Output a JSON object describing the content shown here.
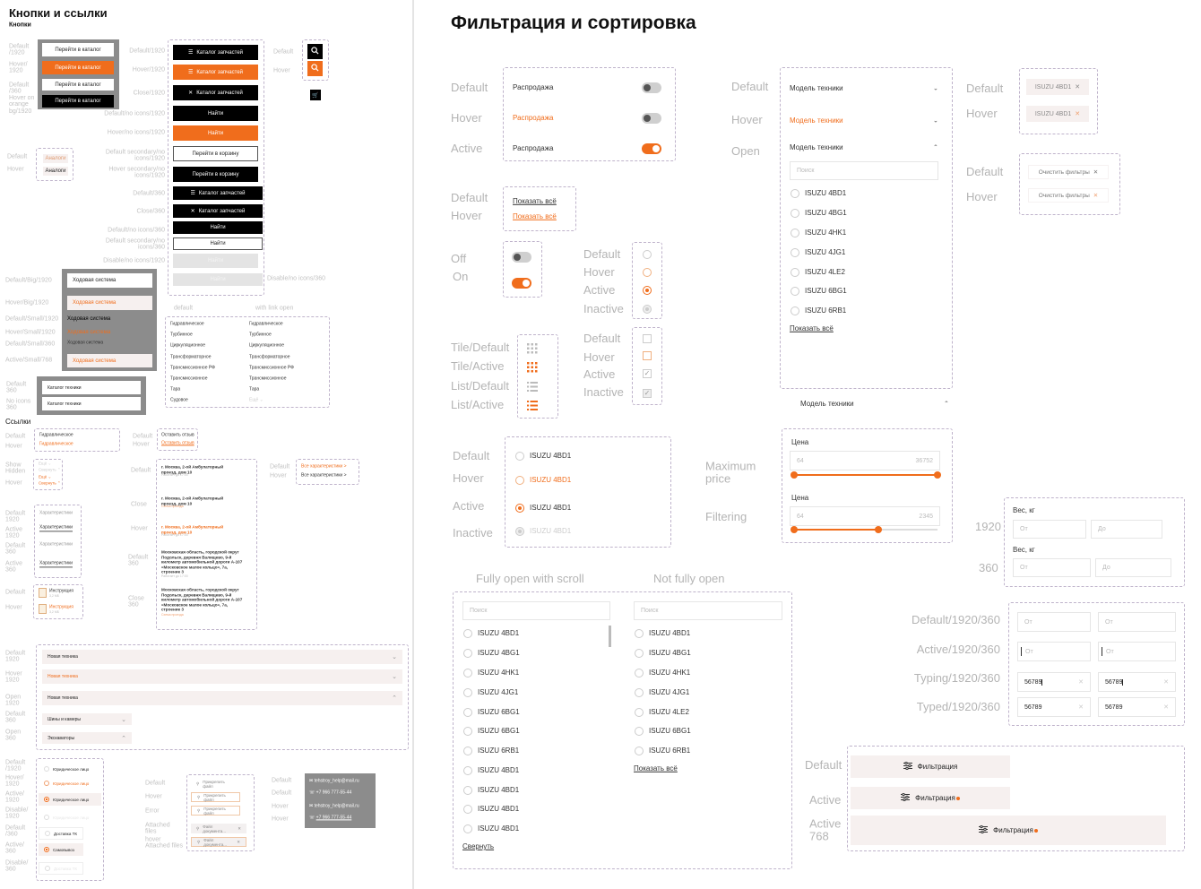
{
  "left": {
    "title": "Кнопки и ссылки",
    "buttons_heading": "Кнопки",
    "links_heading": "Ссылки",
    "group1": {
      "labels": [
        "Default\n/1920",
        "Hover/\n1920",
        "Default\n/360",
        "Hover on\norange\nbg/1920"
      ],
      "buttons": [
        "Перейти в каталог",
        "Перейти в каталог",
        "Перейти в каталог",
        "Перейти в каталог"
      ]
    },
    "main_buttons": {
      "labels": [
        "Default/1920",
        "Hover/1920",
        "Close/1920",
        "Default/no icons/1920",
        "Hover/no icons/1920",
        "Default secondary/no\nicons/1920",
        "Hover secondary/no\nicons/1920",
        "Default/360",
        "Close/360",
        "Default/no icons/360",
        "Default secondary/no\nicons/360",
        "Disable/no icons/1920",
        "Disable/no icons/360"
      ],
      "buttons": [
        "Каталог запчастей",
        "Каталог запчастей",
        "Каталог запчастей",
        "Найти",
        "Найти",
        "Перейти в корзину",
        "Перейти в корзину",
        "Каталог запчастей",
        "Каталог запчастей",
        "Найти",
        "Найти",
        "Найти",
        "Найти"
      ]
    },
    "icon_buttons": {
      "labels": [
        "Default",
        "Hover"
      ]
    },
    "analog": {
      "labels": [
        "Default",
        "Hover"
      ],
      "buttons": [
        "Аналоги",
        "Аналоги"
      ]
    },
    "bars": {
      "labels": [
        "Default/Big/1920",
        "Hover/Big/1920",
        "Default/Small/1920",
        "Hover/Small/1920",
        "Default/Small/360",
        "Active/Small/768"
      ],
      "items": [
        "Ходовая система",
        "Ходовая система",
        "Ходовая система",
        "Ходовая система",
        "Ходовая система",
        "Ходовая система"
      ]
    },
    "catalog_fields": {
      "labels": [
        "Default\n360",
        "No icons\n360"
      ],
      "items": [
        "Каталог техники",
        "Каталог техники"
      ]
    },
    "category_list": {
      "headers": [
        "default",
        "with link open"
      ],
      "col1": [
        "Гидравлическое",
        "Турбинное",
        "Циркуляционное",
        "Трансформаторное",
        "Трансмиссионное РФ",
        "Трансмиссионное",
        "Тара",
        "Судовое"
      ],
      "col2": [
        "Гидравлическое",
        "Турбинное",
        "Циркуляционное",
        "Трансформаторное",
        "Трансмиссионное РФ",
        "Трансмиссионное",
        "Тара"
      ],
      "more": "Ещё ⌄"
    },
    "link_states": {
      "labels": [
        "Default",
        "Hover"
      ],
      "items": [
        "Гидравлическое",
        "Гидравлическое"
      ]
    },
    "review": {
      "labels": [
        "Default",
        "Hover"
      ],
      "items": [
        "Оставить отзыв",
        "Оставить отзыв"
      ]
    },
    "show_hidden": {
      "labels": [
        "Show\nHidden",
        "Hover"
      ],
      "items": [
        "Ещё ⌄",
        "Свернуть ⌃",
        "Ещё ⌄",
        "Свернуть ⌃"
      ]
    },
    "tabs": {
      "labels": [
        "Default\n1920",
        "Active\n1920",
        "Default\n360",
        "Active\n360"
      ],
      "items": [
        "Характеристики",
        "Характеристики",
        "Характеристики",
        "Характеристики"
      ]
    },
    "file": {
      "labels": [
        "Default",
        "Hover"
      ],
      "name": "Инструкция",
      "size": "3,2 МБ"
    },
    "addresses": {
      "labels": [
        "Default",
        "Close",
        "Hover",
        "Default\n360",
        "Close\n360"
      ],
      "items": [
        {
          "text": "г. Москва, 2-ой Амбулаторный\nпроезд, дом 10",
          "note": "Работает до 17:00"
        },
        {
          "text": "г. Москва, 2-ой Амбулаторный\nпроезд, дом 10",
          "note": "Схема проезда"
        },
        {
          "text": "г. Москва, 2-ой Амбулаторный\nпроезд, дом 10",
          "note": "Работает до 17:00"
        },
        {
          "text": "Московская область, городской округ\nПодольск, деревня Валищево, 9-й\nкилометр автомобильной дороги А-107\n«Московское малое кольцо», 7а,\nстроение 3",
          "note": "Работает до 17:00"
        },
        {
          "text": "Московская область, городской округ\nПодольск, деревня Валищево, 9-й\nкилометр автомобильной дороги А-107\n«Московское малое кольцо», 7а,\nстроение 3",
          "note": "Схема проезда"
        }
      ]
    },
    "all_specs": {
      "labels": [
        "Default",
        "Hover"
      ],
      "items": [
        "Все характеристики  >",
        "Все характеристики  >"
      ]
    },
    "accordion": {
      "labels": [
        "Default\n1920",
        "Hover\n1920",
        "Open\n1920",
        "Default\n360",
        "Open\n360"
      ],
      "items": [
        "Новая техника",
        "Новая техника",
        "Новая техника",
        "Шины и камеры",
        "Экскаваторы"
      ]
    },
    "radio_buttons": {
      "labels": [
        "Default\n/1920",
        "Hover/\n1920",
        "Active/\n1920",
        "Disable/\n1920",
        "Default\n/360",
        "Active/\n360",
        "Disable/\n360"
      ],
      "items": [
        "Юридическое лицо",
        "Юридическое лицо",
        "Юридическое лицо",
        "Юридическое лицо",
        "Доставка ТК",
        "Самовывоз",
        "Доставка ТК"
      ]
    },
    "attach": {
      "labels": [
        "Default",
        "Hover",
        "Error",
        "Attached\nfiles",
        "hover\nAttached files"
      ],
      "items": [
        "Прикрепить файл",
        "Прикрепить файл",
        "Прикрепить файл",
        "Файл документа...",
        "Файл документа..."
      ]
    },
    "contacts": {
      "labels": [
        "Default",
        "Default",
        "Hover",
        "Hover"
      ],
      "email": "tehstroy_help@mail.ru",
      "phone": "+7 966 777-55-44"
    }
  },
  "right": {
    "title": "Фильтрация и сортировка",
    "sale": {
      "labels": [
        "Default",
        "Hover",
        "Active"
      ],
      "items": [
        "Распродажа",
        "Распродажа",
        "Распродажа"
      ],
      "toggle_states": [
        "off",
        "off",
        "on"
      ]
    },
    "show_all": {
      "labels": [
        "Default",
        "Hover"
      ],
      "items": [
        "Показать всё",
        "Показать всё"
      ]
    },
    "toggle": {
      "labels": [
        "Off",
        "On"
      ]
    },
    "radio": {
      "labels": [
        "Default",
        "Hover",
        "Active",
        "Inactive"
      ]
    },
    "checkbox": {
      "labels": [
        "Default",
        "Hover",
        "Active",
        "Inactive"
      ]
    },
    "view": {
      "labels": [
        "Tile/Default",
        "Tile/Active",
        "List/Default",
        "List/Active"
      ]
    },
    "radio_list": {
      "labels": [
        "Default",
        "Hover",
        "Active",
        "Inactive"
      ],
      "items": [
        "ISUZU 4BD1",
        "ISUZU 4BD1",
        "ISUZU 4BD1",
        "ISUZU 4BD1"
      ]
    },
    "dropdown": {
      "labels": [
        "Default",
        "Hover",
        "Open"
      ],
      "items": [
        "Модель техники",
        "Модель техники",
        "Модель техники"
      ],
      "search_placeholder": "Поиск",
      "options": [
        "ISUZU 4BD1",
        "ISUZU 4BG1",
        "ISUZU 4HK1",
        "ISUZU 4JG1",
        "ISUZU 4LE2",
        "ISUZU 6BG1",
        "ISUZU 6RB1"
      ],
      "show_all": "Показать всё",
      "collapsed": "Модель техники"
    },
    "chips": {
      "labels": [
        "Default",
        "Hover"
      ],
      "items": [
        "ISUZU 4BD1",
        "ISUZU 4BD1"
      ]
    },
    "clear": {
      "labels": [
        "Default",
        "Hover"
      ],
      "items": [
        "Очистить фильтры",
        "Очистить фильтры"
      ]
    },
    "price": {
      "labels": [
        "Maximum\nprice",
        "Filtering"
      ],
      "title": "Цена",
      "sliders": [
        {
          "min": "64",
          "max": "36752",
          "fill": 1.0
        },
        {
          "min": "64",
          "max": "2345",
          "fill": 0.59
        }
      ]
    },
    "weight": {
      "labels": [
        "1920",
        "360"
      ],
      "title": "Вес, кг",
      "from": "От",
      "to": "До"
    },
    "range_inputs": {
      "labels": [
        "Default/1920/360",
        "Active/1920/360",
        "Typing/1920/360",
        "Typed/1920/360"
      ],
      "placeholder": "От",
      "typed": "56789"
    },
    "filter_button": {
      "labels": [
        "Default",
        "Active",
        "Active\n768"
      ],
      "label": "Фильтрация"
    },
    "scroll_lists": {
      "headers": [
        "Fully open with scroll",
        "Not fully open"
      ],
      "search_placeholder": "Поиск",
      "full": [
        "ISUZU 4BD1",
        "ISUZU 4BG1",
        "ISUZU 4HK1",
        "ISUZU 4JG1",
        "ISUZU 6BG1",
        "ISUZU 6BG1",
        "ISUZU 6RB1",
        "ISUZU 4BD1",
        "ISUZU 4BD1",
        "ISUZU 4BD1",
        "ISUZU 4BD1"
      ],
      "partial": [
        "ISUZU 4BD1",
        "ISUZU 4BG1",
        "ISUZU 4HK1",
        "ISUZU 4JG1",
        "ISUZU 4LE2",
        "ISUZU 6BG1",
        "ISUZU 6RB1"
      ],
      "collapse": "Свернуть",
      "show_all": "Показать всё"
    }
  },
  "colors": {
    "accent": "#f06d1c",
    "black": "#000000",
    "panel_gray": "#8c8c8c",
    "pale": "#f6f0ef"
  }
}
